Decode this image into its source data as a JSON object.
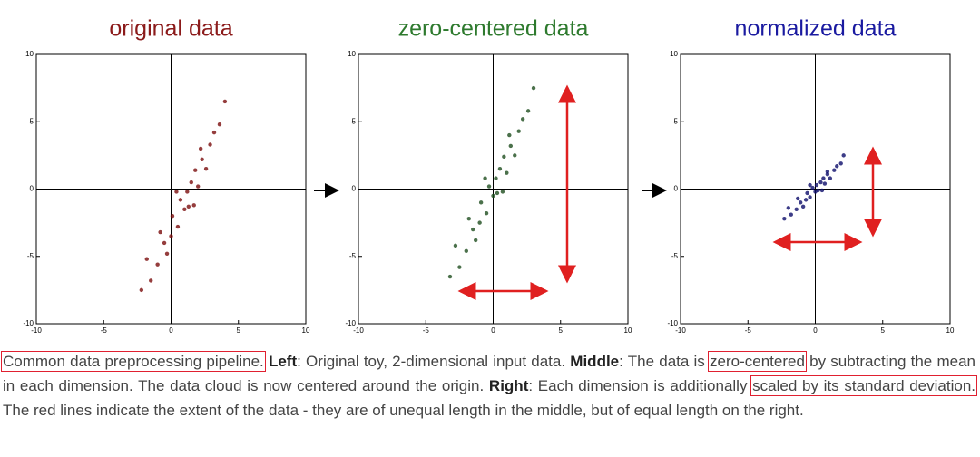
{
  "chart_data": [
    {
      "type": "scatter",
      "title": "original data",
      "title_color": "#8b1a1a",
      "color": "#7a0c0c",
      "x": [
        -2.2,
        -1.5,
        -1.8,
        -1,
        -0.5,
        -0.8,
        0,
        0.1,
        0.5,
        0.7,
        1,
        1.2,
        1.5,
        1.3,
        1.8,
        2,
        2.3,
        2.6,
        2.9,
        3.2,
        3.6,
        4,
        0.4,
        1.7,
        -0.3,
        2.2
      ],
      "y": [
        -7.5,
        -6.8,
        -5.2,
        -5.6,
        -4,
        -3.2,
        -3.5,
        -2,
        -2.8,
        -0.8,
        -1.5,
        -0.2,
        0.5,
        -1.3,
        1.4,
        0.2,
        2.2,
        1.5,
        3.3,
        4.2,
        4.8,
        6.5,
        -0.2,
        -1.2,
        -4.8,
        3
      ],
      "xlim": [
        -10,
        10
      ],
      "ylim": [
        -10,
        10
      ],
      "xticks": [
        -10,
        -5,
        0,
        5,
        10
      ],
      "yticks": [
        -10,
        -5,
        0,
        5,
        10
      ]
    },
    {
      "type": "scatter",
      "title": "zero-centered data",
      "title_color": "#2e7a2e",
      "color": "#1e4d1e",
      "x": [
        -3.2,
        -2.5,
        -2.8,
        -2,
        -1.5,
        -1.8,
        -1,
        -0.9,
        -0.5,
        -0.3,
        0,
        0.2,
        0.5,
        0.3,
        0.8,
        1,
        1.3,
        1.6,
        1.9,
        2.2,
        2.6,
        3,
        -0.6,
        0.7,
        -1.3,
        1.2
      ],
      "y": [
        -6.5,
        -5.8,
        -4.2,
        -4.6,
        -3,
        -2.2,
        -2.5,
        -1,
        -1.8,
        0.2,
        -0.5,
        0.8,
        1.5,
        -0.3,
        2.4,
        1.2,
        3.2,
        2.5,
        4.3,
        5.2,
        5.8,
        7.5,
        0.8,
        -0.2,
        -3.8,
        4
      ],
      "xlim": [
        -10,
        10
      ],
      "ylim": [
        -10,
        10
      ],
      "xticks": [
        -10,
        -5,
        0,
        5,
        10
      ],
      "yticks": [
        -10,
        -5,
        0,
        5,
        10
      ]
    },
    {
      "type": "scatter",
      "title": "normalized data",
      "title_color": "#1a1aa0",
      "color": "#0c0c6a",
      "x": [
        -2.3,
        -1.8,
        -2,
        -1.4,
        -1.1,
        -1.3,
        -0.7,
        -0.6,
        -0.4,
        -0.2,
        0,
        0.1,
        0.4,
        0.2,
        0.6,
        0.7,
        0.9,
        1.1,
        1.4,
        1.6,
        1.9,
        2.1,
        -0.4,
        0.5,
        -0.9,
        0.9
      ],
      "y": [
        -2.2,
        -1.9,
        -1.4,
        -1.5,
        -1,
        -0.7,
        -0.8,
        -0.3,
        -0.6,
        0.1,
        -0.2,
        0.3,
        0.5,
        -0.1,
        0.8,
        0.4,
        1.1,
        0.8,
        1.4,
        1.7,
        1.9,
        2.5,
        0.3,
        -0.1,
        -1.3,
        1.3
      ],
      "xlim": [
        -10,
        10
      ],
      "ylim": [
        -10,
        10
      ],
      "xticks": [
        -10,
        -5,
        0,
        5,
        10
      ],
      "yticks": [
        -10,
        -5,
        0,
        5,
        10
      ]
    }
  ],
  "caption": {
    "lead": "Common data preprocessing pipeline.",
    "left_label": "Left",
    "left_text": ": Original toy, 2-dimensional input data.",
    "middle_label": "Middle",
    "middle_text1": ": The data is",
    "boxed1": "zero-centered",
    "middle_text2": "by subtracting the mean in each dimension. The data cloud is now centered around the origin.",
    "right_label": "Right",
    "right_text1": ": Each dimension is additionally",
    "boxed2": "scaled by its standard deviation.",
    "right_text2": "The red lines indicate the extent of the data - they are of unequal length in the middle, but of equal length on the right."
  }
}
